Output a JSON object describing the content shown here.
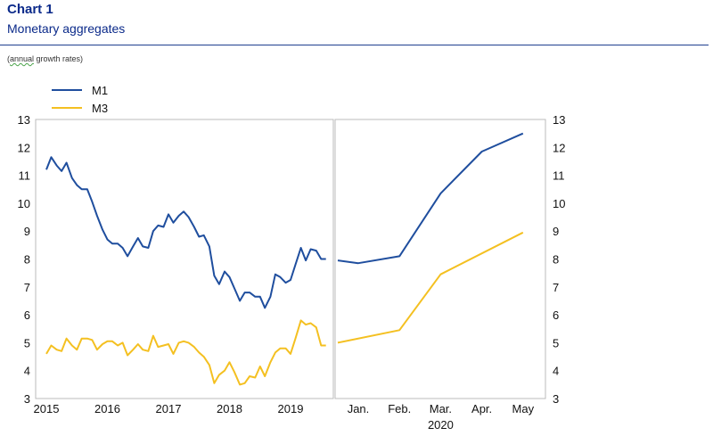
{
  "header": {
    "chart_label": "Chart 1",
    "title": "Monetary aggregates",
    "units_prefix": "(",
    "units_word": "annual",
    "units_rest": " growth rates)"
  },
  "colors": {
    "m1": "#1f4e9e",
    "m3": "#f4c021",
    "title": "#0b2a8a",
    "rule": "#1f3f8f",
    "frame": "#bbbbbb"
  },
  "chart_data": [
    {
      "type": "line",
      "panel": "monthly 2015-2019",
      "ylim": [
        3,
        13
      ],
      "yticks": [
        3,
        4,
        5,
        6,
        7,
        8,
        9,
        10,
        11,
        12,
        13
      ],
      "xlim": [
        2015,
        2019.75
      ],
      "xticks": [
        {
          "value": 2015,
          "label": "2015"
        },
        {
          "value": 2016,
          "label": "2016"
        },
        {
          "value": 2017,
          "label": "2017"
        },
        {
          "value": 2018,
          "label": "2018"
        },
        {
          "value": 2019,
          "label": "2019"
        }
      ],
      "legend": {
        "placement": "top-left",
        "entries": [
          "M1",
          "M3"
        ]
      },
      "series": [
        {
          "name": "M1",
          "x": [
            2015.0,
            2015.08,
            2015.17,
            2015.25,
            2015.33,
            2015.42,
            2015.5,
            2015.58,
            2015.67,
            2015.75,
            2015.83,
            2015.92,
            2016.0,
            2016.08,
            2016.17,
            2016.25,
            2016.33,
            2016.42,
            2016.5,
            2016.58,
            2016.67,
            2016.75,
            2016.83,
            2016.92,
            2017.0,
            2017.08,
            2017.17,
            2017.25,
            2017.33,
            2017.42,
            2017.5,
            2017.58,
            2017.67,
            2017.75,
            2017.83,
            2017.92,
            2018.0,
            2018.08,
            2018.17,
            2018.25,
            2018.33,
            2018.42,
            2018.5,
            2018.58,
            2018.67,
            2018.75,
            2018.83,
            2018.92,
            2019.0,
            2019.08,
            2019.17,
            2019.25,
            2019.33,
            2019.42,
            2019.5,
            2019.58
          ],
          "values": [
            11.2,
            11.65,
            11.35,
            11.15,
            11.45,
            10.9,
            10.65,
            10.5,
            10.5,
            10.05,
            9.55,
            9.05,
            8.7,
            8.55,
            8.55,
            8.4,
            8.1,
            8.45,
            8.75,
            8.45,
            8.4,
            9.0,
            9.2,
            9.15,
            9.6,
            9.3,
            9.55,
            9.7,
            9.5,
            9.15,
            8.8,
            8.85,
            8.45,
            7.4,
            7.1,
            7.55,
            7.35,
            6.95,
            6.5,
            6.8,
            6.8,
            6.65,
            6.65,
            6.25,
            6.65,
            7.45,
            7.35,
            7.15,
            7.25,
            7.8,
            8.4,
            7.95,
            8.35,
            8.3,
            8.0,
            8.0
          ]
        },
        {
          "name": "M3",
          "x": [
            2015.0,
            2015.08,
            2015.17,
            2015.25,
            2015.33,
            2015.42,
            2015.5,
            2015.58,
            2015.67,
            2015.75,
            2015.83,
            2015.92,
            2016.0,
            2016.08,
            2016.17,
            2016.25,
            2016.33,
            2016.42,
            2016.5,
            2016.58,
            2016.67,
            2016.75,
            2016.83,
            2016.92,
            2017.0,
            2017.08,
            2017.17,
            2017.25,
            2017.33,
            2017.42,
            2017.5,
            2017.58,
            2017.67,
            2017.75,
            2017.83,
            2017.92,
            2018.0,
            2018.08,
            2018.17,
            2018.25,
            2018.33,
            2018.42,
            2018.5,
            2018.58,
            2018.67,
            2018.75,
            2018.83,
            2018.92,
            2019.0,
            2019.08,
            2019.17,
            2019.25,
            2019.33,
            2019.42,
            2019.5,
            2019.58
          ],
          "values": [
            4.6,
            4.9,
            4.75,
            4.7,
            5.15,
            4.9,
            4.75,
            5.15,
            5.15,
            5.1,
            4.75,
            4.95,
            5.05,
            5.05,
            4.9,
            5.0,
            4.55,
            4.75,
            4.95,
            4.75,
            4.7,
            5.25,
            4.85,
            4.9,
            4.95,
            4.6,
            5.0,
            5.05,
            5.0,
            4.85,
            4.65,
            4.5,
            4.2,
            3.55,
            3.85,
            4.0,
            4.3,
            3.95,
            3.5,
            3.55,
            3.8,
            3.75,
            4.15,
            3.8,
            4.3,
            4.65,
            4.8,
            4.8,
            4.6,
            5.15,
            5.8,
            5.65,
            5.7,
            5.55,
            4.9,
            4.9
          ]
        }
      ]
    },
    {
      "type": "line",
      "panel": "2020 monthly",
      "ylim": [
        3,
        13
      ],
      "yticks": [
        3,
        4,
        5,
        6,
        7,
        8,
        9,
        10,
        11,
        12,
        13
      ],
      "categories": [
        "Jan.",
        "Feb.",
        "Mar.",
        "Apr.",
        "May"
      ],
      "year_label": "2020",
      "series": [
        {
          "name": "M1",
          "x": [
            0.5,
            1.0,
            2.0,
            3.0,
            4.0,
            5.0
          ],
          "values": [
            7.95,
            7.85,
            8.1,
            10.35,
            11.85,
            12.5
          ]
        },
        {
          "name": "M3",
          "x": [
            0.5,
            2.0,
            3.0,
            5.0
          ],
          "values": [
            5.0,
            5.45,
            7.45,
            8.95
          ]
        }
      ]
    }
  ]
}
